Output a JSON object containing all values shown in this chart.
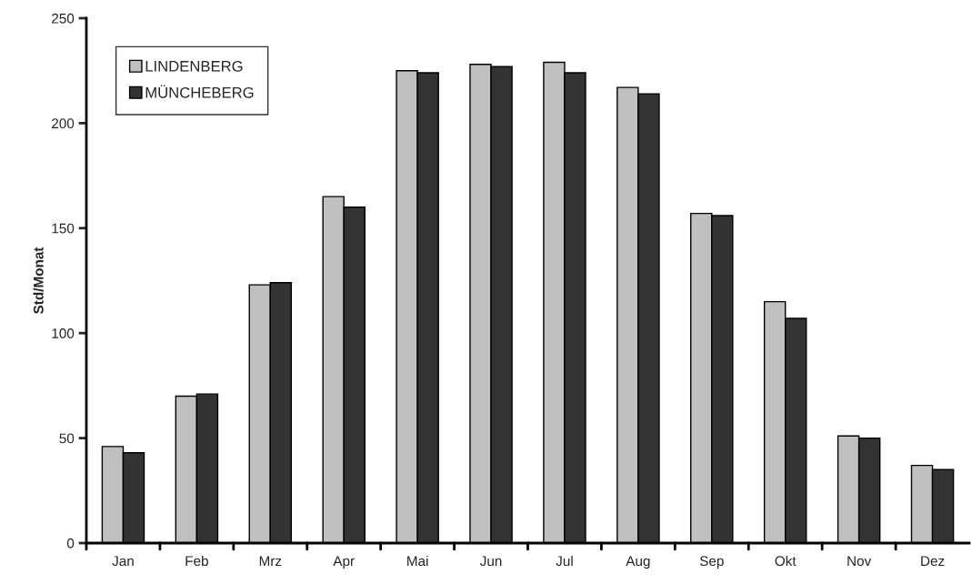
{
  "chart_data": {
    "type": "bar",
    "ylabel": "Std/Monat",
    "categories": [
      "Jan",
      "Feb",
      "Mrz",
      "Apr",
      "Mai",
      "Jun",
      "Jul",
      "Aug",
      "Sep",
      "Okt",
      "Nov",
      "Dez"
    ],
    "series": [
      {
        "name": "LINDENBERG",
        "color": "#c0c0c0",
        "values": [
          46,
          70,
          123,
          165,
          225,
          228,
          229,
          217,
          157,
          115,
          51,
          37
        ]
      },
      {
        "name": "MÜNCHEBERG",
        "color": "#333333",
        "values": [
          43,
          71,
          124,
          160,
          224,
          227,
          224,
          214,
          156,
          107,
          50,
          35
        ]
      }
    ],
    "ylim": [
      0,
      250
    ],
    "yticks": [
      0,
      50,
      100,
      150,
      200,
      250
    ],
    "grid": false,
    "legend": "top left"
  }
}
